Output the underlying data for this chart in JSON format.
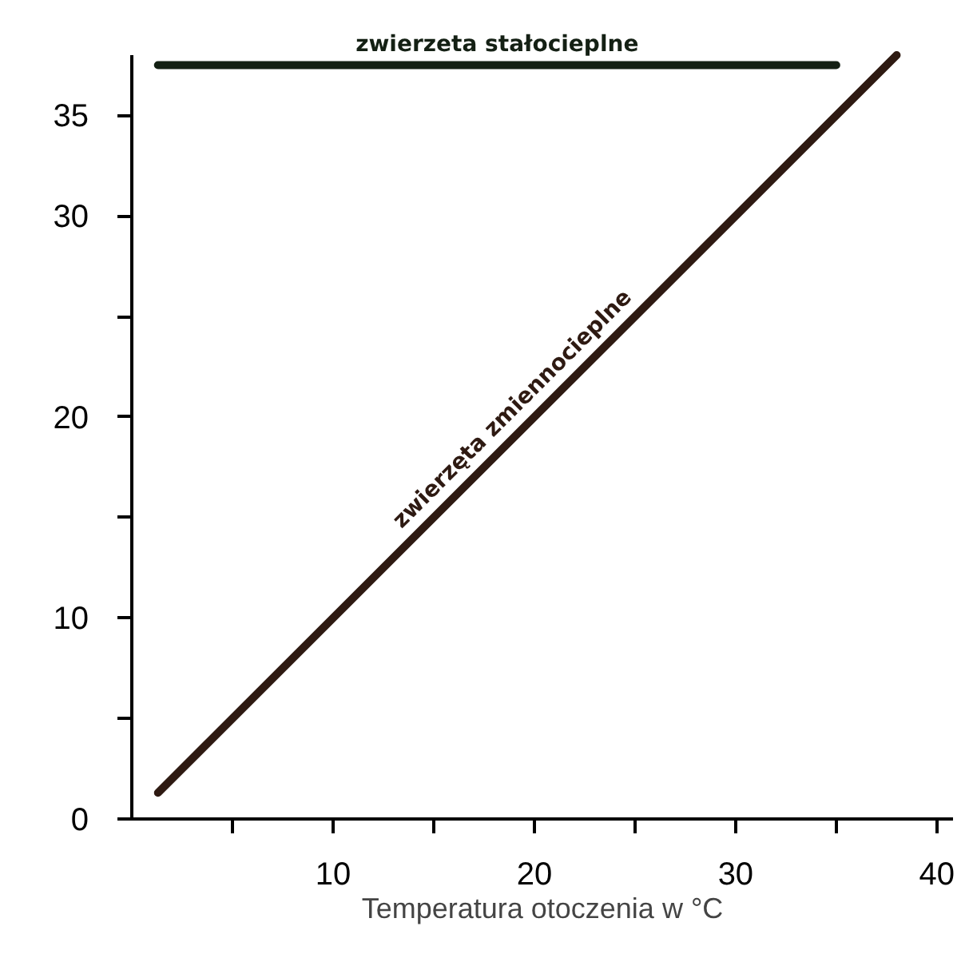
{
  "chart_data": {
    "type": "line",
    "xlabel": "Temperatura otoczenia w °C",
    "xlim": [
      0,
      40.8
    ],
    "ylim": [
      0,
      38
    ],
    "xticks": [
      {
        "value": 5,
        "label": null
      },
      10,
      {
        "value": 15,
        "label": null
      },
      20,
      {
        "value": 25,
        "label": null
      },
      30,
      {
        "value": 35,
        "label": null
      },
      40
    ],
    "yticks": [
      0,
      {
        "value": 5,
        "label": null
      },
      10,
      {
        "value": 15,
        "label": null
      },
      20,
      {
        "value": 25,
        "label": null
      },
      30,
      35
    ],
    "grid": false,
    "legend": false,
    "series": [
      {
        "name": "zwierzeta stałocieplne",
        "color": "#142014",
        "x": [
          1.3,
          35
        ],
        "values": [
          37.5,
          37.5
        ]
      },
      {
        "name": "zwierzęta zmiennocieplne",
        "color": "#2e1a12",
        "x": [
          1.3,
          38
        ],
        "values": [
          1.3,
          38
        ]
      }
    ]
  }
}
